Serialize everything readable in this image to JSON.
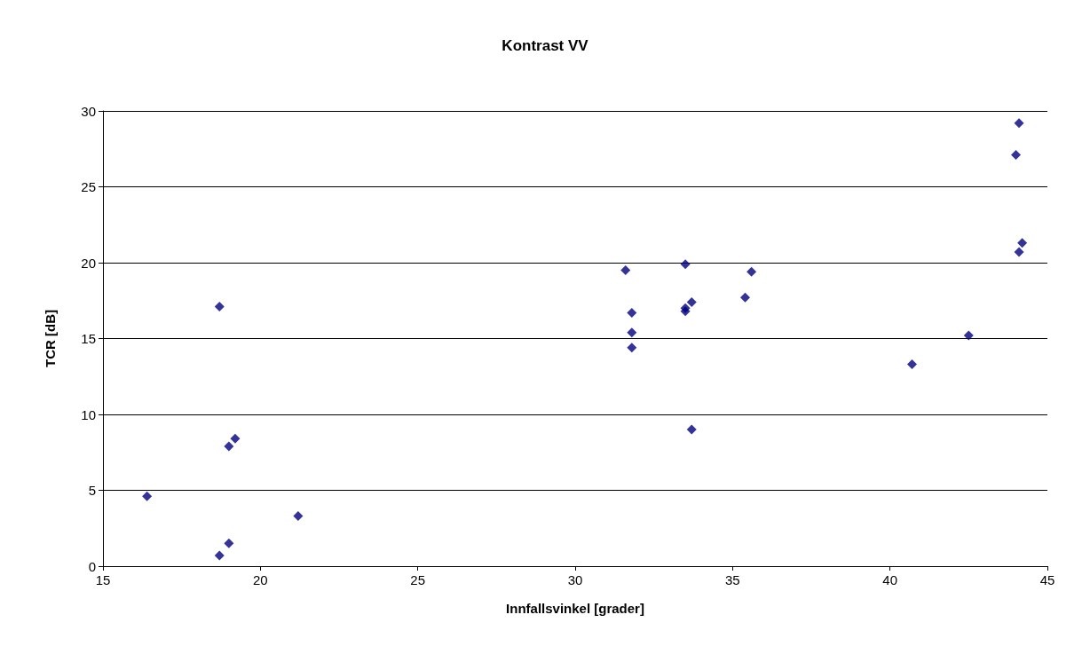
{
  "chart_data": {
    "type": "scatter",
    "title": "Kontrast VV",
    "xlabel": "Innfallsvinkel [grader]",
    "ylabel": "TCR [dB]",
    "x": [
      16.4,
      18.7,
      19.0,
      18.7,
      19.0,
      19.2,
      21.2,
      31.6,
      31.8,
      31.8,
      31.8,
      33.5,
      33.5,
      33.5,
      33.7,
      33.7,
      35.4,
      35.6,
      40.7,
      42.5,
      44.0,
      44.1,
      44.1,
      44.2
    ],
    "series": [
      {
        "color": "#000080",
        "values": [
          4.6,
          0.7,
          1.5,
          17.1,
          7.9,
          8.4,
          3.3,
          19.5,
          16.7,
          15.4,
          14.4,
          19.9,
          16.8,
          17.0,
          17.4,
          9.0,
          17.7,
          19.4,
          13.3,
          15.2,
          27.1,
          29.2,
          20.7,
          21.3
        ]
      }
    ],
    "xlim": [
      15,
      45
    ],
    "xticks": [
      15,
      20,
      25,
      30,
      35,
      40,
      45
    ],
    "ylim": [
      0,
      30
    ],
    "yticks": [
      0,
      5,
      10,
      15,
      20,
      25,
      30
    ],
    "grid": "y",
    "marker": "diamond"
  }
}
